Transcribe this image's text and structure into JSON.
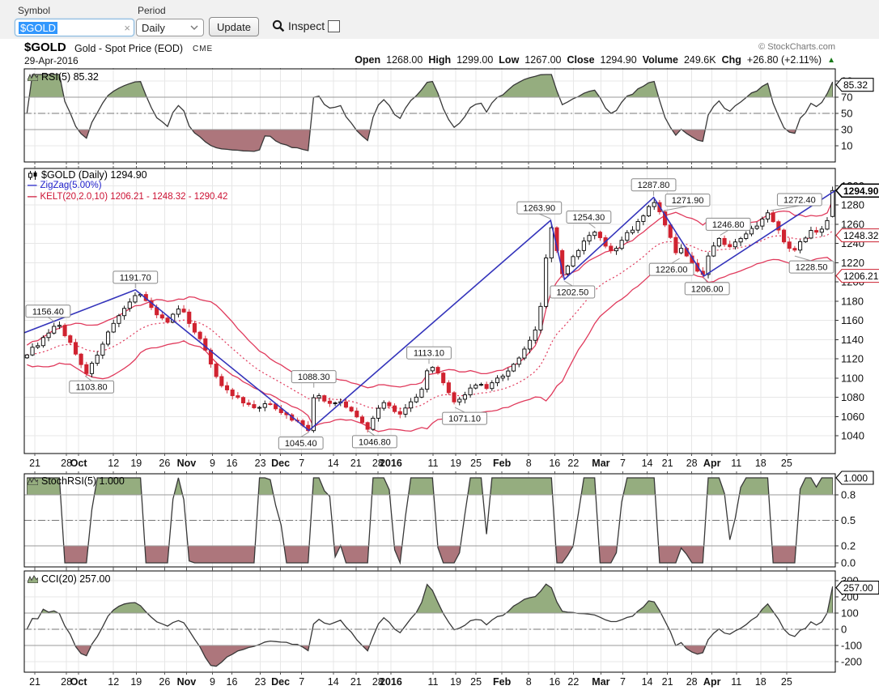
{
  "toolbar": {
    "symbol_label": "Symbol",
    "symbol_value": "$GOLD",
    "clear_icon": "×",
    "period_label": "Period",
    "period_value": "Daily",
    "update_label": "Update",
    "inspect_label": "Inspect",
    "inspect_checked": false
  },
  "header": {
    "symbol": "$GOLD",
    "name": "Gold - Spot Price (EOD)",
    "exchange": "CME",
    "date": "29-Apr-2016",
    "copyright": "© StockCharts.com",
    "quote": {
      "open_label": "Open",
      "open": "1268.00",
      "high_label": "High",
      "high": "1299.00",
      "low_label": "Low",
      "low": "1267.00",
      "close_label": "Close",
      "close": "1294.90",
      "volume_label": "Volume",
      "volume": "249.6K",
      "chg_label": "Chg",
      "chg": "+26.80 (+2.11%)",
      "direction": "▲"
    }
  },
  "colors": {
    "zigzag_blue": "#3434bb",
    "keltner_red": "#e03a5c",
    "candle_down": "#d02330",
    "candle_up_fill": "#ffffff",
    "candle_up_stroke": "#000000",
    "indicator_line": "#383838",
    "fill_above": "#95ad7f",
    "fill_below": "#ad767c",
    "grid": "#e7e7e7",
    "band_line": "#9a9a9a",
    "mid_line": "#777777",
    "chg_up": "#1a7a1a",
    "legend_zigzag": "#2222cc",
    "legend_kelt": "#cc1133"
  },
  "chart_data": {
    "shared_x": {
      "ticks": [
        {
          "label": "21",
          "f": 0.013
        },
        {
          "label": "28",
          "f": 0.052
        },
        {
          "label": "Oct",
          "f": 0.067,
          "bold": true
        },
        {
          "label": "12",
          "f": 0.11
        },
        {
          "label": "19",
          "f": 0.138
        },
        {
          "label": "26",
          "f": 0.173
        },
        {
          "label": "Nov",
          "f": 0.2,
          "bold": true
        },
        {
          "label": "9",
          "f": 0.232
        },
        {
          "label": "16",
          "f": 0.256
        },
        {
          "label": "23",
          "f": 0.291
        },
        {
          "label": "Dec",
          "f": 0.316,
          "bold": true
        },
        {
          "label": "7",
          "f": 0.342
        },
        {
          "label": "14",
          "f": 0.381
        },
        {
          "label": "21",
          "f": 0.409
        },
        {
          "label": "28",
          "f": 0.436
        },
        {
          "label": "2016",
          "f": 0.452,
          "bold": true
        },
        {
          "label": "11",
          "f": 0.504
        },
        {
          "label": "19",
          "f": 0.532
        },
        {
          "label": "25",
          "f": 0.557
        },
        {
          "label": "Feb",
          "f": 0.589,
          "bold": true
        },
        {
          "label": "8",
          "f": 0.622
        },
        {
          "label": "16",
          "f": 0.654
        },
        {
          "label": "22",
          "f": 0.677
        },
        {
          "label": "Mar",
          "f": 0.711,
          "bold": true
        },
        {
          "label": "7",
          "f": 0.738
        },
        {
          "label": "14",
          "f": 0.768
        },
        {
          "label": "21",
          "f": 0.793
        },
        {
          "label": "28",
          "f": 0.823
        },
        {
          "label": "Apr",
          "f": 0.848,
          "bold": true
        },
        {
          "label": "11",
          "f": 0.878
        },
        {
          "label": "18",
          "f": 0.908
        },
        {
          "label": "25",
          "f": 0.94
        }
      ]
    },
    "panels": [
      {
        "id": "rsi",
        "type": "area",
        "label": "RSI(5) 85.32",
        "indicator": "RSI",
        "period": 5,
        "last_value": 85.32,
        "range": [
          0,
          100
        ],
        "ticks": [
          "90",
          "70",
          "50",
          "30",
          "10"
        ],
        "tick_values": [
          90,
          70,
          50,
          30,
          10
        ],
        "bands": {
          "over": 70,
          "mid": 50,
          "under": 30
        },
        "callout": {
          "text": "85.32",
          "value": 85.32,
          "style": "black"
        }
      },
      {
        "id": "price",
        "type": "candlestick",
        "label": "$GOLD (Daily) 1294.90",
        "last_close": 1294.9,
        "ylim": [
          1021,
          1318
        ],
        "ticks": [
          1300,
          1280,
          1260,
          1240,
          1220,
          1200,
          1180,
          1160,
          1140,
          1120,
          1100,
          1080,
          1060,
          1040
        ],
        "candle_count": 150,
        "last_candle": {
          "open": 1268.0,
          "high": 1299.0,
          "low": 1267.0,
          "close": 1294.9
        },
        "zigzag": {
          "label": "ZigZag(5.00%)",
          "percent": 5.0,
          "points": [
            [
              0,
              1147
            ],
            [
              0.137,
              1191.7
            ],
            [
              0.351,
              1045.4
            ],
            [
              0.649,
              1263.9
            ],
            [
              0.666,
              1202.5
            ],
            [
              0.776,
              1287.8
            ],
            [
              0.838,
              1206.0
            ],
            [
              1,
              1294.9
            ]
          ]
        },
        "keltner": {
          "label": "KELT(20,2.0,10) 1206.21 - 1248.32 - 1290.42",
          "params": [
            20,
            2.0,
            10
          ],
          "last_lower": 1206.21,
          "last_mid": 1248.32,
          "last_upper": 1290.42
        },
        "close_path": [
          [
            0,
            1124
          ],
          [
            0.01,
            1133
          ],
          [
            0.022,
            1142
          ],
          [
            0.032,
            1150
          ],
          [
            0.038,
            1157
          ],
          [
            0.046,
            1147
          ],
          [
            0.055,
            1134
          ],
          [
            0.065,
            1118
          ],
          [
            0.075,
            1104
          ],
          [
            0.083,
            1118
          ],
          [
            0.092,
            1133
          ],
          [
            0.1,
            1146
          ],
          [
            0.11,
            1158
          ],
          [
            0.12,
            1170
          ],
          [
            0.13,
            1181
          ],
          [
            0.137,
            1192
          ],
          [
            0.145,
            1183
          ],
          [
            0.152,
            1175
          ],
          [
            0.16,
            1168
          ],
          [
            0.168,
            1162
          ],
          [
            0.175,
            1158
          ],
          [
            0.182,
            1166
          ],
          [
            0.19,
            1172
          ],
          [
            0.198,
            1163
          ],
          [
            0.206,
            1152
          ],
          [
            0.214,
            1141
          ],
          [
            0.222,
            1128
          ],
          [
            0.23,
            1112
          ],
          [
            0.238,
            1097
          ],
          [
            0.246,
            1088
          ],
          [
            0.254,
            1083
          ],
          [
            0.262,
            1078
          ],
          [
            0.27,
            1073
          ],
          [
            0.278,
            1070
          ],
          [
            0.286,
            1068
          ],
          [
            0.294,
            1071
          ],
          [
            0.302,
            1074
          ],
          [
            0.31,
            1069
          ],
          [
            0.318,
            1063
          ],
          [
            0.326,
            1058
          ],
          [
            0.334,
            1056
          ],
          [
            0.342,
            1052
          ],
          [
            0.351,
            1045.4
          ],
          [
            0.357,
            1087
          ],
          [
            0.364,
            1080
          ],
          [
            0.372,
            1075
          ],
          [
            0.38,
            1072
          ],
          [
            0.388,
            1075
          ],
          [
            0.396,
            1070
          ],
          [
            0.404,
            1064
          ],
          [
            0.412,
            1058
          ],
          [
            0.418,
            1052
          ],
          [
            0.424,
            1047
          ],
          [
            0.43,
            1060
          ],
          [
            0.438,
            1071
          ],
          [
            0.446,
            1076
          ],
          [
            0.454,
            1069
          ],
          [
            0.462,
            1061
          ],
          [
            0.47,
            1068
          ],
          [
            0.478,
            1075
          ],
          [
            0.486,
            1082
          ],
          [
            0.492,
            1094
          ],
          [
            0.499,
            1112
          ],
          [
            0.506,
            1108
          ],
          [
            0.513,
            1100
          ],
          [
            0.52,
            1091
          ],
          [
            0.527,
            1080
          ],
          [
            0.531,
            1072
          ],
          [
            0.538,
            1080
          ],
          [
            0.546,
            1086
          ],
          [
            0.554,
            1090
          ],
          [
            0.562,
            1093
          ],
          [
            0.57,
            1089
          ],
          [
            0.578,
            1094
          ],
          [
            0.586,
            1100
          ],
          [
            0.594,
            1106
          ],
          [
            0.602,
            1112
          ],
          [
            0.61,
            1120
          ],
          [
            0.618,
            1130
          ],
          [
            0.626,
            1142
          ],
          [
            0.634,
            1157
          ],
          [
            0.641,
            1190
          ],
          [
            0.646,
            1245
          ],
          [
            0.649,
            1263
          ],
          [
            0.654,
            1246
          ],
          [
            0.66,
            1222
          ],
          [
            0.666,
            1203
          ],
          [
            0.672,
            1218
          ],
          [
            0.68,
            1228
          ],
          [
            0.688,
            1237
          ],
          [
            0.696,
            1247
          ],
          [
            0.704,
            1253
          ],
          [
            0.712,
            1244
          ],
          [
            0.72,
            1234
          ],
          [
            0.728,
            1231
          ],
          [
            0.736,
            1241
          ],
          [
            0.744,
            1249
          ],
          [
            0.752,
            1256
          ],
          [
            0.762,
            1265
          ],
          [
            0.77,
            1276
          ],
          [
            0.776,
            1287
          ],
          [
            0.781,
            1275
          ],
          [
            0.786,
            1271
          ],
          [
            0.793,
            1256
          ],
          [
            0.8,
            1242
          ],
          [
            0.808,
            1227
          ],
          [
            0.814,
            1236
          ],
          [
            0.821,
            1224
          ],
          [
            0.83,
            1213
          ],
          [
            0.838,
            1207
          ],
          [
            0.846,
            1226
          ],
          [
            0.854,
            1242
          ],
          [
            0.858,
            1247
          ],
          [
            0.866,
            1240
          ],
          [
            0.874,
            1235
          ],
          [
            0.882,
            1242
          ],
          [
            0.89,
            1247
          ],
          [
            0.898,
            1253
          ],
          [
            0.906,
            1258
          ],
          [
            0.914,
            1265
          ],
          [
            0.92,
            1272
          ],
          [
            0.928,
            1262
          ],
          [
            0.936,
            1248
          ],
          [
            0.944,
            1236
          ],
          [
            0.95,
            1229
          ],
          [
            0.958,
            1238
          ],
          [
            0.966,
            1247
          ],
          [
            0.974,
            1253
          ],
          [
            0.982,
            1249
          ],
          [
            0.988,
            1258
          ],
          [
            0.994,
            1266
          ],
          [
            1,
            1294.9
          ]
        ],
        "annotations": [
          {
            "text": "1156.40",
            "f": 0.038,
            "p": 1156.4,
            "pos": "above",
            "dx": -14
          },
          {
            "text": "1103.80",
            "f": 0.075,
            "p": 1103.8,
            "pos": "below",
            "dx": 8
          },
          {
            "text": "1191.70",
            "f": 0.137,
            "p": 1191.7,
            "pos": "above",
            "dx": 0
          },
          {
            "text": "1045.40",
            "f": 0.351,
            "p": 1045.4,
            "pos": "below",
            "dx": -10
          },
          {
            "text": "1088.30",
            "f": 0.357,
            "p": 1088.3,
            "pos": "above",
            "dx": 0
          },
          {
            "text": "1046.80",
            "f": 0.424,
            "p": 1046.8,
            "pos": "below",
            "dx": 8
          },
          {
            "text": "1113.10",
            "f": 0.499,
            "p": 1113.1,
            "pos": "above",
            "dx": 0
          },
          {
            "text": "1071.10",
            "f": 0.531,
            "p": 1071.1,
            "pos": "below",
            "dx": 12
          },
          {
            "text": "1263.90",
            "f": 0.649,
            "p": 1263.9,
            "pos": "above",
            "dx": -14
          },
          {
            "text": "1202.50",
            "f": 0.666,
            "p": 1202.5,
            "pos": "below",
            "dx": 10
          },
          {
            "text": "1254.30",
            "f": 0.704,
            "p": 1254.3,
            "pos": "above",
            "dx": -8
          },
          {
            "text": "1287.80",
            "f": 0.776,
            "p": 1287.8,
            "pos": "above",
            "dx": 0
          },
          {
            "text": "1271.90",
            "f": 0.786,
            "p": 1271.9,
            "pos": "above",
            "dx": 32
          },
          {
            "text": "1226.00",
            "f": 0.808,
            "p": 1226.0,
            "pos": "below",
            "dx": -10
          },
          {
            "text": "1206.00",
            "f": 0.838,
            "p": 1206.0,
            "pos": "below",
            "dx": 4
          },
          {
            "text": "1246.80",
            "f": 0.858,
            "p": 1246.8,
            "pos": "above",
            "dx": 10
          },
          {
            "text": "1272.40",
            "f": 0.92,
            "p": 1272.4,
            "pos": "above",
            "dx": 36
          },
          {
            "text": "1228.50",
            "f": 0.95,
            "p": 1228.5,
            "pos": "below",
            "dx": 30
          }
        ],
        "axis_callouts": [
          {
            "text": "1294.90",
            "value": 1294.9,
            "style": "bold"
          },
          {
            "text": "1248.32",
            "value": 1248.32,
            "style": "red"
          },
          {
            "text": "1206.21",
            "value": 1206.21,
            "style": "red"
          }
        ]
      },
      {
        "id": "stochrsi",
        "type": "area",
        "label": "StochRSI(5) 1.000",
        "indicator": "StochRSI",
        "period": 5,
        "last_value": 1.0,
        "range": [
          0,
          1
        ],
        "ticks": [
          "0.8",
          "0.5",
          "0.2",
          "0.0"
        ],
        "tick_values": [
          0.8,
          0.5,
          0.2,
          0.0
        ],
        "bands": {
          "over": 0.8,
          "mid": 0.5,
          "under": 0.2
        },
        "callout": {
          "text": "1.000",
          "value": 1.0,
          "style": "black"
        }
      },
      {
        "id": "cci",
        "type": "area",
        "label": "CCI(20) 257.00",
        "indicator": "CCI",
        "period": 20,
        "last_value": 257.0,
        "range": [
          -260,
          360
        ],
        "ticks": [
          "300",
          "200",
          "100",
          "0",
          "-100",
          "-200"
        ],
        "tick_values": [
          300,
          200,
          100,
          0,
          -100,
          -200
        ],
        "bands": {
          "over": 100,
          "mid": 0,
          "under": -100
        },
        "callout": {
          "text": "257.00",
          "value": 257.0,
          "style": "black"
        }
      }
    ]
  }
}
